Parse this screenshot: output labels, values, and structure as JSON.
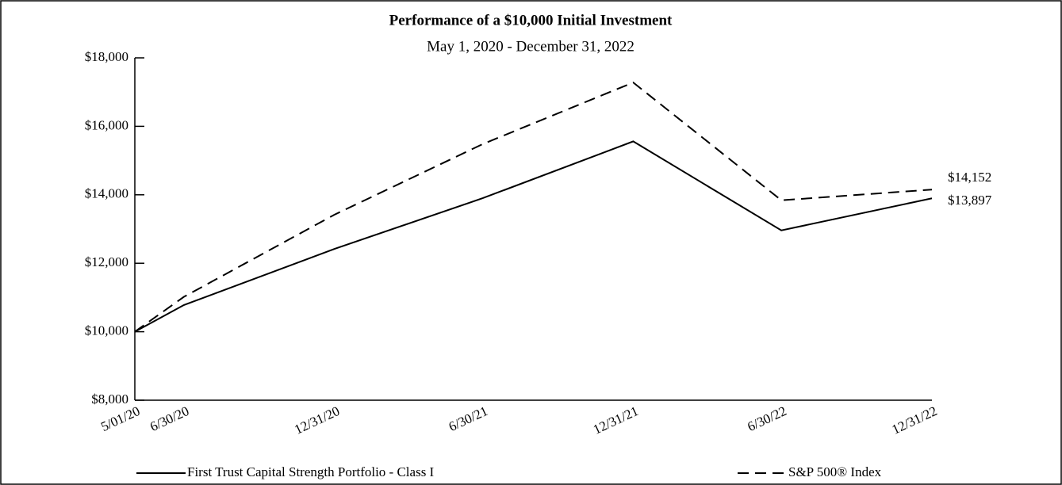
{
  "chart_data": {
    "type": "line",
    "title": "Performance of a $10,000 Initial Investment",
    "subtitle": "May 1, 2020 - December 31, 2022",
    "x": [
      "5/01/20",
      "6/30/20",
      "12/31/20",
      "6/30/21",
      "12/31/21",
      "6/30/22",
      "12/31/22"
    ],
    "series": [
      {
        "name": "First Trust Capital Strength Portfolio - Class I",
        "color": "#000000",
        "dash": false,
        "values": [
          10000,
          10780,
          12420,
          13900,
          15560,
          12960,
          13897
        ],
        "value_labels": [
          null,
          null,
          null,
          null,
          null,
          null,
          "$13,897"
        ]
      },
      {
        "name": "S&P 500® Index",
        "color": "#000000",
        "dash": true,
        "values": [
          10000,
          11020,
          13420,
          15480,
          17280,
          13840,
          14152
        ],
        "value_labels": [
          null,
          null,
          null,
          null,
          null,
          null,
          "$14,152"
        ]
      }
    ],
    "ylim": [
      8000,
      18000
    ],
    "yticks": [
      {
        "value": 8000,
        "label": "$8,000"
      },
      {
        "value": 10000,
        "label": "$10,000"
      },
      {
        "value": 12000,
        "label": "$12,000"
      },
      {
        "value": 14000,
        "label": "$14,000"
      },
      {
        "value": 16000,
        "label": "$16,000"
      },
      {
        "value": 18000,
        "label": "$18,000"
      }
    ],
    "grid": false
  }
}
